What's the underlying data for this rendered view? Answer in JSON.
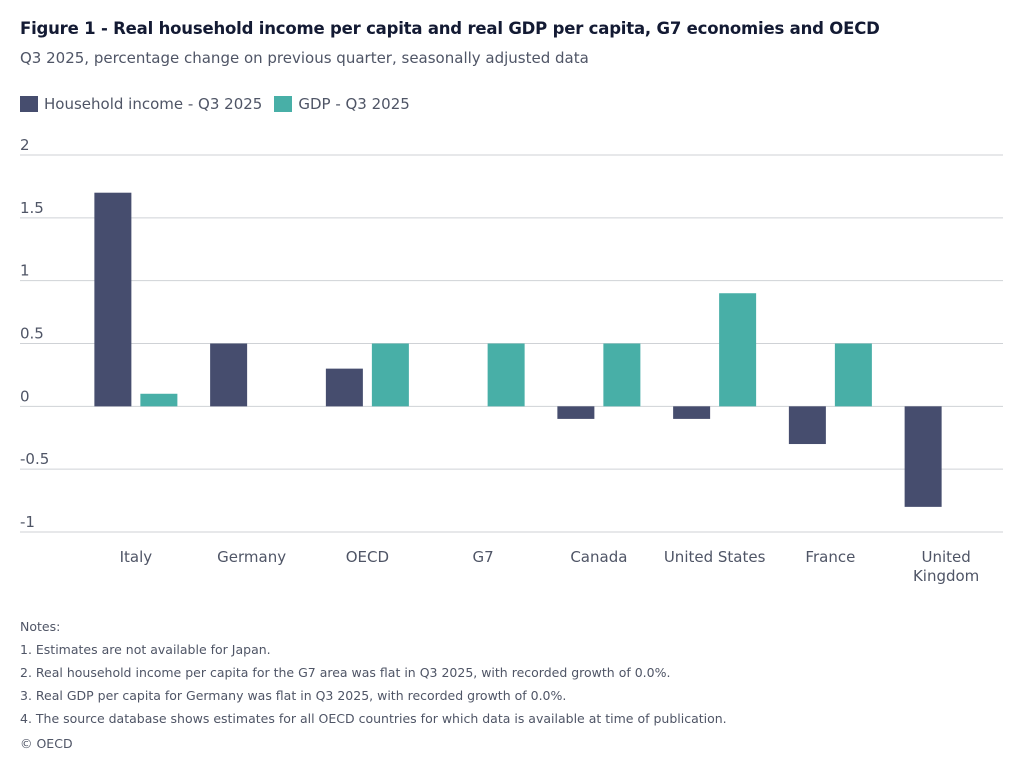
{
  "title": "Figure 1 - Real household income per capita and real GDP per capita, G7 economies and OECD",
  "subtitle": "Q3 2025, percentage change on previous quarter, seasonally adjusted data",
  "colors": {
    "household": "#464d6e",
    "gdp": "#48afa7",
    "grid": "#cfd2d6",
    "text": "#4f5566"
  },
  "chart_data": {
    "type": "bar",
    "title": "Figure 1 - Real household income per capita and real GDP per capita, G7 economies and OECD",
    "subtitle": "Q3 2025, percentage change on previous quarter, seasonally adjusted data",
    "categories": [
      "Italy",
      "Germany",
      "OECD",
      "G7",
      "Canada",
      "United States",
      "France",
      "United Kingdom"
    ],
    "category_lines": [
      [
        "Italy"
      ],
      [
        "Germany"
      ],
      [
        "OECD"
      ],
      [
        "G7"
      ],
      [
        "Canada"
      ],
      [
        "United States"
      ],
      [
        "France"
      ],
      [
        "United",
        "Kingdom"
      ]
    ],
    "series": [
      {
        "name": "Household income - Q3 2025",
        "values": [
          1.7,
          0.5,
          0.3,
          0.0,
          -0.1,
          -0.1,
          -0.3,
          -0.8
        ]
      },
      {
        "name": "GDP - Q3 2025",
        "values": [
          0.1,
          0.0,
          0.5,
          0.5,
          0.5,
          0.9,
          0.5,
          null
        ]
      }
    ],
    "yticks": [
      2,
      1.5,
      1,
      0.5,
      0,
      -0.5,
      -1
    ],
    "ytick_labels": [
      "2",
      "1.5",
      "1",
      "0.5",
      "0",
      "-0.5",
      "-1"
    ],
    "ylim": [
      -1,
      2
    ],
    "xlabel": "",
    "ylabel": "",
    "grid": true,
    "legend": "top-left"
  },
  "notes": {
    "heading": "Notes:",
    "items": [
      "1. Estimates are not available for Japan.",
      "2. Real household income per capita for the G7 area was flat in Q3 2025, with recorded growth of 0.0%.",
      "3. Real GDP per capita for Germany was flat in Q3 2025, with recorded growth of 0.0%.",
      "4. The source database shows estimates for all OECD countries for which data is available at time of publication."
    ]
  },
  "copyright": "© OECD"
}
